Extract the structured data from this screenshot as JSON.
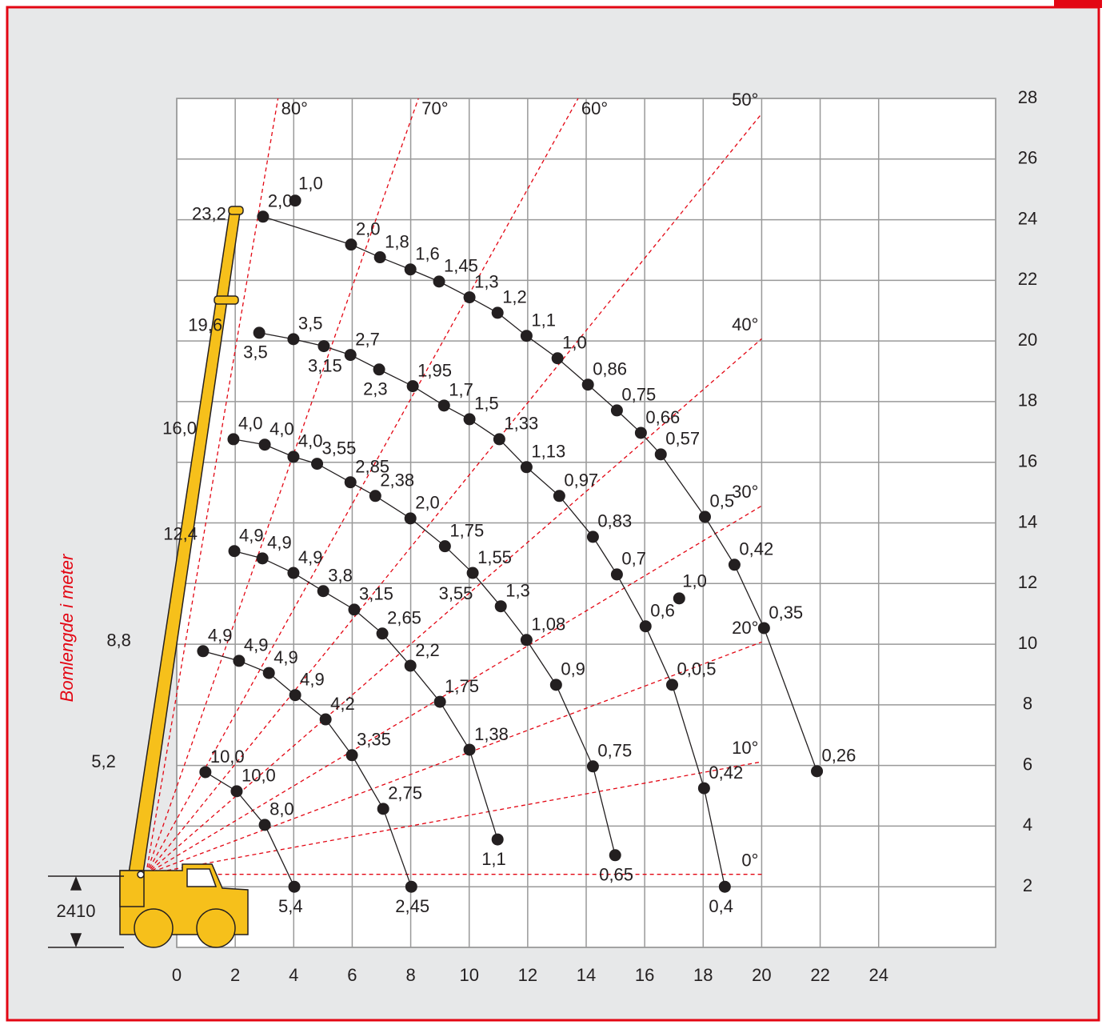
{
  "chart_data": {
    "type": "crane-load",
    "y_axis_title": "Bomlengde i meter",
    "xlim": [
      0,
      28
    ],
    "ylim": [
      0,
      28
    ],
    "xticks": [
      0,
      2,
      4,
      6,
      8,
      10,
      12,
      14,
      16,
      18,
      20,
      22,
      24
    ],
    "yticks": [
      2,
      4,
      6,
      8,
      10,
      12,
      14,
      16,
      18,
      20,
      22,
      24,
      26,
      28
    ],
    "grid": true,
    "angle_color": "#e30613",
    "pivot_height": 2410,
    "angles": [
      {
        "value": 0,
        "label": "0°"
      },
      {
        "value": 10,
        "label": "10°"
      },
      {
        "value": 20,
        "label": "20°"
      },
      {
        "value": 30,
        "label": "30°"
      },
      {
        "value": 40,
        "label": "40°"
      },
      {
        "value": 50,
        "label": "50°"
      },
      {
        "value": 60,
        "label": "60°"
      },
      {
        "value": 70,
        "label": "70°"
      },
      {
        "value": 80,
        "label": "80°"
      }
    ],
    "series": [
      {
        "name": "23,2",
        "color": "#231f20",
        "x": [
          2.95,
          5.96,
          6.95,
          7.99,
          8.97,
          10.01,
          10.97,
          11.96,
          13.02,
          14.06,
          15.05,
          15.87,
          16.55,
          18.06,
          19.07,
          20.08,
          21.89
        ],
        "values": [
          24.1,
          23.18,
          22.76,
          22.36,
          21.96,
          21.44,
          20.93,
          20.17,
          19.43,
          18.56,
          17.71,
          16.97,
          16.26,
          14.2,
          12.62,
          10.53,
          5.81
        ],
        "loads": [
          "2,0",
          "2,0",
          "1,8",
          "1,6",
          "1,45",
          "1,3",
          "1,2",
          "1,1",
          "1,0",
          "0,86",
          "0,75",
          "0,66",
          "0,57",
          "0,5",
          "0,42",
          "0,35",
          "0,26"
        ]
      },
      {
        "name": "19,6",
        "color": "#231f20",
        "x": [
          2.82,
          3.99,
          5.03,
          5.94,
          6.92,
          8.07,
          9.14,
          10.01,
          11.03,
          11.96,
          13.08,
          14.23,
          15.05,
          16.03,
          16.94,
          18.03,
          18.74
        ],
        "values": [
          20.27,
          20.06,
          19.83,
          19.54,
          19.06,
          18.51,
          17.87,
          17.42,
          16.76,
          15.84,
          14.89,
          13.54,
          12.3,
          10.59,
          8.66,
          5.25,
          2.0
        ],
        "loads": [
          "3,5",
          "3,5",
          "3,15",
          "2,7",
          "2,3",
          "1,95",
          "1,7",
          "1,5",
          "1,33",
          "1,13",
          "0,97",
          "0,83",
          "0,7",
          "0,6",
          "0,0,5",
          "0,42",
          "0,4"
        ]
      },
      {
        "name": "16,0",
        "color": "#231f20",
        "x": [
          1.94,
          3.01,
          3.99,
          4.8,
          5.94,
          6.79,
          7.99,
          9.17,
          10.12,
          11.08,
          11.96,
          12.97,
          14.23,
          14.99
        ],
        "values": [
          16.76,
          16.58,
          16.18,
          15.95,
          15.34,
          14.89,
          14.15,
          13.23,
          12.35,
          11.25,
          10.14,
          8.66,
          5.97,
          3.04
        ],
        "loads": [
          "4,0",
          "4,0",
          "4,0",
          "3,55",
          "2,85",
          "2,38",
          "2,0",
          "1,75",
          "1,55",
          "1,3",
          "1,08",
          "0,9",
          "0,75",
          "0,65"
        ]
      },
      {
        "name": "12,4",
        "color": "#231f20",
        "x": [
          1.97,
          2.93,
          3.99,
          5.01,
          6.07,
          7.03,
          7.99,
          9.0,
          10.01,
          10.97
        ],
        "values": [
          13.07,
          12.83,
          12.35,
          11.75,
          11.14,
          10.35,
          9.29,
          8.1,
          6.52,
          3.56
        ],
        "loads": [
          "4,9",
          "4,9",
          "4,9",
          "3,8",
          "3,15",
          "2,65",
          "2,2",
          "1,75",
          "1,38",
          "1,1"
        ]
      },
      {
        "name": "8,8",
        "color": "#231f20",
        "x": [
          0.9,
          2.13,
          3.15,
          4.05,
          5.09,
          5.99,
          7.06,
          8.02
        ],
        "values": [
          9.77,
          9.45,
          9.05,
          8.32,
          7.52,
          6.34,
          4.57,
          2.0
        ],
        "loads": [
          "4,9",
          "4,9",
          "4,9",
          "4,9",
          "4,2",
          "3,35",
          "2,75",
          "2,45"
        ]
      },
      {
        "name": "5,2",
        "color": "#231f20",
        "x": [
          0.98,
          2.05,
          3.01,
          4.02
        ],
        "values": [
          5.78,
          5.15,
          4.04,
          2.0
        ],
        "loads": [
          "10,0",
          "10,0",
          "8,0",
          "5,4"
        ]
      }
    ],
    "extra_points": {
      "x": [
        4.05,
        17.18
      ],
      "values": [
        24.63,
        11.51
      ],
      "loads": [
        "1,0",
        "1,0"
      ]
    },
    "extra_texts": [
      "3,55"
    ]
  }
}
